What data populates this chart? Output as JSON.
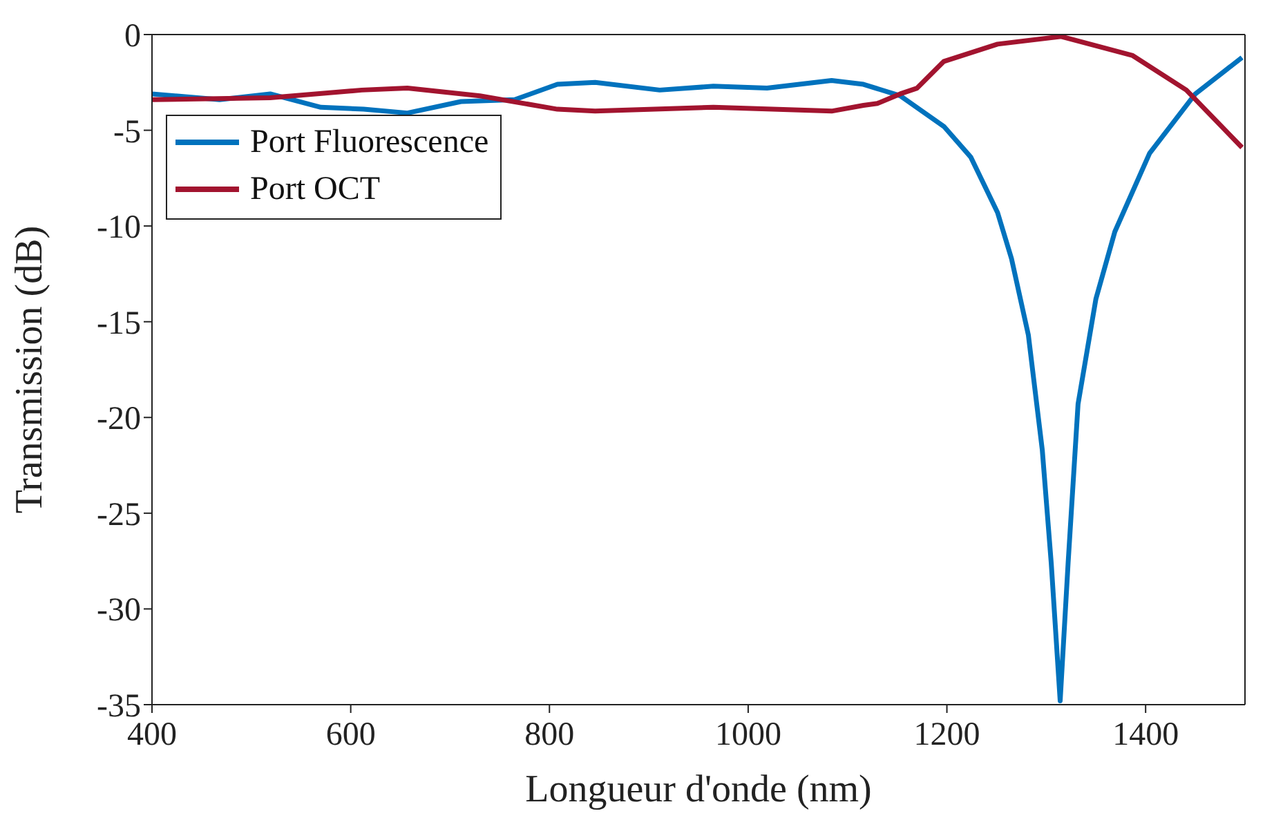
{
  "chart_data": {
    "type": "line",
    "xlabel": "Longueur d'onde (nm)",
    "ylabel": "Transmission (dB)",
    "xlim": [
      400,
      1500
    ],
    "xticks": [
      400,
      600,
      800,
      1000,
      1200,
      1400
    ],
    "ylim": [
      -35,
      0
    ],
    "yticks": [
      -35,
      -30,
      -25,
      -20,
      -15,
      -10,
      -5,
      0
    ],
    "legend": "top left",
    "marker": "none",
    "line_style": "solid",
    "series": [
      {
        "name": "Port Fluorescence",
        "color": "#0072bd",
        "x": [
          400,
          468,
          519,
          570,
          613,
          657,
          711,
          765,
          808,
          846,
          911,
          965,
          1019,
          1084,
          1116,
          1153,
          1197,
          1224,
          1251,
          1265,
          1282,
          1296,
          1305,
          1314,
          1322,
          1332,
          1350,
          1369,
          1404,
          1450,
          1497
        ],
        "values": [
          -3.1,
          -3.4,
          -3.1,
          -3.8,
          -3.9,
          -4.1,
          -3.5,
          -3.4,
          -2.6,
          -2.5,
          -2.9,
          -2.7,
          -2.8,
          -2.4,
          -2.6,
          -3.2,
          -4.8,
          -6.4,
          -9.3,
          -11.7,
          -15.7,
          -21.7,
          -27.6,
          -34.8,
          -27.6,
          -19.3,
          -13.8,
          -10.3,
          -6.2,
          -3.1,
          -1.2
        ]
      },
      {
        "name": "Port OCT",
        "color": "#a2142f",
        "x": [
          400,
          519,
          611,
          657,
          730,
          808,
          846,
          965,
          1084,
          1116,
          1130,
          1153,
          1170,
          1197,
          1251,
          1315,
          1387,
          1441,
          1497
        ],
        "values": [
          -3.4,
          -3.3,
          -2.9,
          -2.8,
          -3.2,
          -3.9,
          -4.0,
          -3.8,
          -4.0,
          -3.7,
          -3.6,
          -3.1,
          -2.8,
          -1.4,
          -0.5,
          -0.1,
          -1.1,
          -2.9,
          -5.9
        ]
      }
    ]
  }
}
